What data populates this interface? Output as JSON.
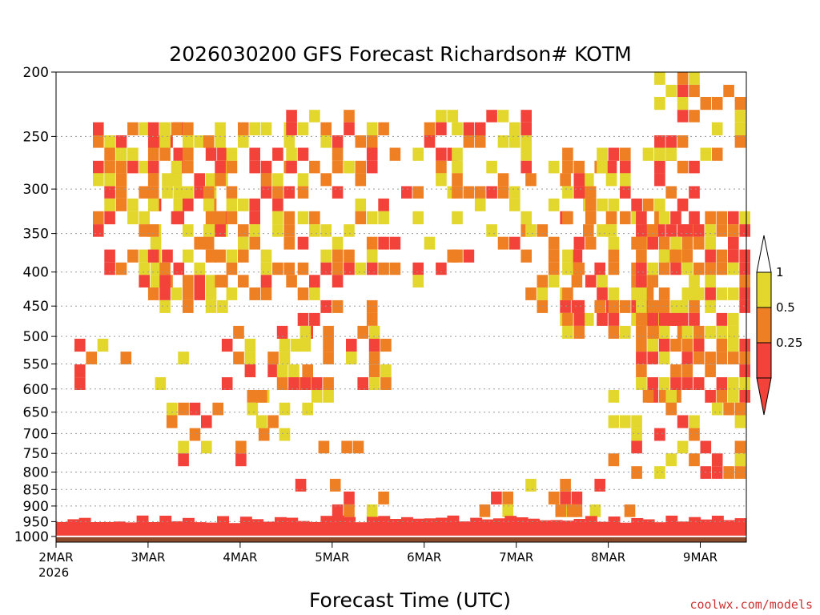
{
  "chart_data": {
    "type": "heatmap",
    "title": "2026030200 GFS Forecast Richardson# KOTM",
    "xlabel": "Forecast Time (UTC)",
    "ylabel": "",
    "credit": "coolwx.com/models",
    "x_start_year": "2026",
    "x_ticks": [
      "2MAR",
      "3MAR",
      "4MAR",
      "5MAR",
      "6MAR",
      "7MAR",
      "8MAR",
      "9MAR"
    ],
    "x_range_days": [
      0,
      7.5
    ],
    "y_ticks": [
      200,
      250,
      300,
      350,
      400,
      450,
      500,
      550,
      600,
      650,
      700,
      750,
      800,
      850,
      900,
      950,
      1000
    ],
    "y_range_hpa": [
      200,
      1020
    ],
    "y_scale": "log-pressure",
    "grid": "dotted horizontal at pressure ticks",
    "ground_color": "#8b4a2b",
    "levels": [
      {
        "upper": 0.25,
        "color": "#f2423a"
      },
      {
        "upper": 0.5,
        "color": "#ef7f23"
      },
      {
        "upper": 1,
        "color": "#e3d62c"
      }
    ],
    "legend": {
      "position": "right",
      "labels": [
        "1",
        "0.5",
        "0.25"
      ]
    },
    "bands": [
      {
        "day0": 0.4,
        "day1": 1.3,
        "p0": 230,
        "p1": 420,
        "density": 0.55
      },
      {
        "day0": 1.0,
        "day1": 1.8,
        "p0": 230,
        "p1": 450,
        "density": 0.5
      },
      {
        "day0": 1.6,
        "day1": 2.6,
        "p0": 230,
        "p1": 430,
        "density": 0.55
      },
      {
        "day0": 2.5,
        "day1": 3.5,
        "p0": 220,
        "p1": 480,
        "density": 0.45
      },
      {
        "day0": 3.5,
        "day1": 4.3,
        "p0": 220,
        "p1": 420,
        "density": 0.3
      },
      {
        "day0": 4.3,
        "day1": 5.1,
        "p0": 220,
        "p1": 380,
        "density": 0.35
      },
      {
        "day0": 5.1,
        "day1": 6.0,
        "p0": 270,
        "p1": 470,
        "density": 0.4
      },
      {
        "day0": 5.5,
        "day1": 6.9,
        "p0": 250,
        "p1": 500,
        "density": 0.45
      },
      {
        "day0": 6.5,
        "day1": 7.5,
        "p0": 200,
        "p1": 260,
        "density": 0.4
      },
      {
        "day0": 6.3,
        "day1": 7.5,
        "p0": 320,
        "p1": 620,
        "density": 0.7
      },
      {
        "day0": 6.0,
        "day1": 7.5,
        "p0": 600,
        "p1": 800,
        "density": 0.45
      },
      {
        "day0": 0.2,
        "day1": 1.4,
        "p0": 500,
        "p1": 620,
        "density": 0.2
      },
      {
        "day0": 1.2,
        "day1": 2.3,
        "p0": 600,
        "p1": 780,
        "density": 0.2
      },
      {
        "day0": 1.8,
        "day1": 2.8,
        "p0": 480,
        "p1": 700,
        "density": 0.35
      },
      {
        "day0": 2.4,
        "day1": 3.6,
        "p0": 480,
        "p1": 620,
        "density": 0.4
      },
      {
        "day0": 2.6,
        "day1": 3.4,
        "p0": 700,
        "p1": 820,
        "density": 0.35
      },
      {
        "day0": 3.0,
        "day1": 3.6,
        "p0": 830,
        "p1": 920,
        "density": 0.45
      },
      {
        "day0": 4.6,
        "day1": 5.9,
        "p0": 800,
        "p1": 930,
        "density": 0.3
      },
      {
        "day0": 5.3,
        "day1": 6.3,
        "p0": 860,
        "p1": 960,
        "density": 0.35
      }
    ]
  }
}
